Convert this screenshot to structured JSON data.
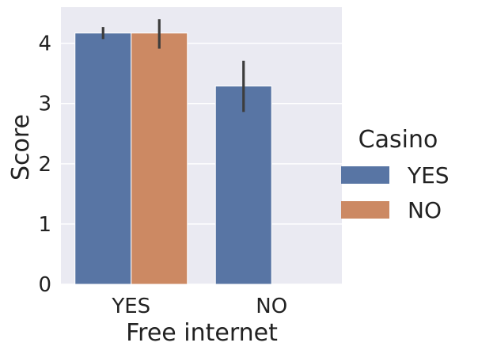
{
  "chart_data": {
    "type": "bar",
    "xlabel": "Free internet",
    "ylabel": "Score",
    "categories": [
      "YES",
      "NO"
    ],
    "ylim": [
      0,
      4.6
    ],
    "yticks": [
      0,
      1,
      2,
      3,
      4
    ],
    "grid": true,
    "legend": {
      "title": "Casino",
      "placement": "right"
    },
    "series": [
      {
        "name": "YES",
        "color": "#5875a4",
        "values": [
          4.17,
          3.29
        ],
        "err_low": [
          4.07,
          2.86
        ],
        "err_high": [
          4.27,
          3.71
        ]
      },
      {
        "name": "NO",
        "color": "#cc8963",
        "values": [
          4.17,
          null
        ],
        "err_low": [
          3.91,
          null
        ],
        "err_high": [
          4.4,
          null
        ]
      }
    ]
  }
}
